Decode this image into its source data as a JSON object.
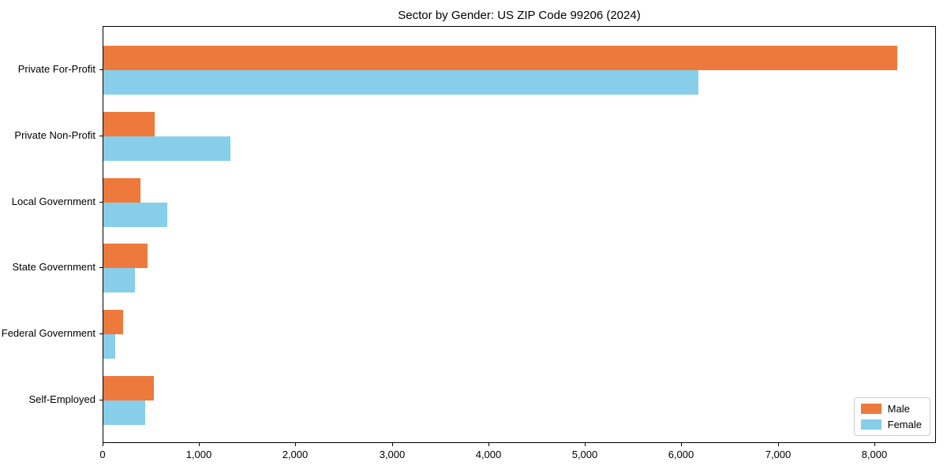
{
  "figure": {
    "background": "#ffffff"
  },
  "chart_data": {
    "type": "bar",
    "orientation": "horizontal",
    "title": "Sector by Gender: US ZIP Code 99206 (2024)",
    "categories": [
      "Private For-Profit",
      "Private Non-Profit",
      "Local Government",
      "State Government",
      "Federal Government",
      "Self-Employed"
    ],
    "series": [
      {
        "name": "Male",
        "color": "#ED7A3C",
        "values": [
          8230,
          535,
          385,
          455,
          205,
          520
        ]
      },
      {
        "name": "Female",
        "color": "#87CEEB",
        "values": [
          6170,
          1320,
          665,
          330,
          125,
          435
        ]
      }
    ],
    "xlabel": "",
    "ylabel": "",
    "xlim": [
      0,
      8640
    ],
    "xticks": [
      0,
      1000,
      2000,
      3000,
      4000,
      5000,
      6000,
      7000,
      8000
    ],
    "xtick_labels": [
      "0",
      "1,000",
      "2,000",
      "3,000",
      "4,000",
      "5,000",
      "6,000",
      "7,000",
      "8,000"
    ],
    "grid": false,
    "legend_position": "lower right",
    "colors": {
      "spine": "#000000",
      "text": "#000000",
      "legend_border": "#cccccc"
    }
  }
}
